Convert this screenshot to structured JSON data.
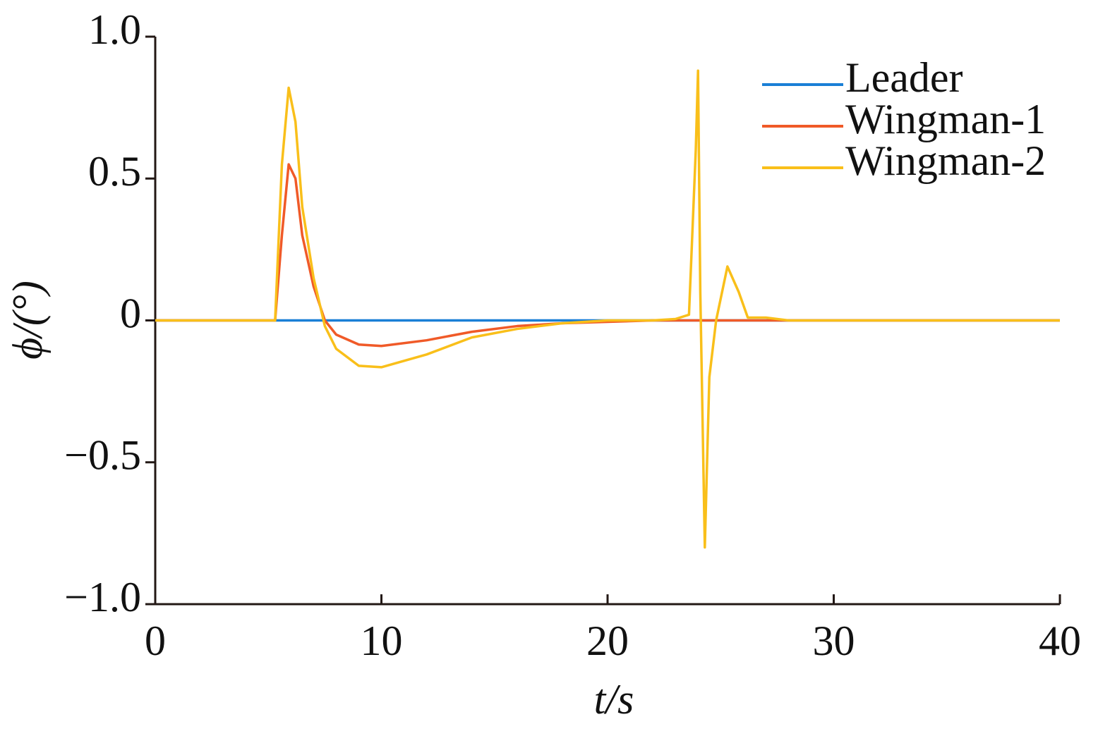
{
  "chart_data": {
    "type": "line",
    "x_label": "t/s",
    "y_label": "ϕ/(°)",
    "x": [
      0,
      5,
      5.3,
      5.6,
      5.9,
      6.2,
      6.5,
      7,
      7.5,
      8,
      9,
      10,
      12,
      14,
      16,
      18,
      20,
      22,
      23,
      23.6,
      23.9,
      24.0,
      24.1,
      24.3,
      24.5,
      24.8,
      25.3,
      25.8,
      26.2,
      27,
      28,
      30,
      35,
      40
    ],
    "series": [
      {
        "name": "Leader",
        "color": "#1a7fd6",
        "values": [
          0,
          0,
          0,
          0,
          0,
          0,
          0,
          0,
          0,
          0,
          0,
          0,
          0,
          0,
          0,
          0,
          0,
          0,
          0,
          0,
          0,
          0,
          0,
          0,
          0,
          0,
          0,
          0,
          0,
          0,
          0,
          0,
          0,
          0
        ]
      },
      {
        "name": "Wingman-1",
        "color": "#f05a28",
        "values": [
          0,
          0,
          0,
          0.3,
          0.55,
          0.5,
          0.3,
          0.12,
          0,
          -0.05,
          -0.085,
          -0.09,
          -0.07,
          -0.04,
          -0.02,
          -0.01,
          -0.005,
          0,
          0,
          0,
          0,
          0,
          0,
          0,
          0,
          0,
          0,
          0,
          0,
          0,
          0,
          0,
          0,
          0
        ]
      },
      {
        "name": "Wingman-2",
        "color": "#f9bf1a",
        "values": [
          0,
          0,
          0,
          0.55,
          0.82,
          0.7,
          0.4,
          0.15,
          -0.02,
          -0.1,
          -0.16,
          -0.165,
          -0.12,
          -0.06,
          -0.03,
          -0.01,
          0,
          0,
          0.005,
          0.02,
          0.6,
          0.88,
          0.1,
          -0.8,
          -0.2,
          0,
          0.19,
          0.1,
          0.01,
          0.01,
          0,
          0,
          0,
          0
        ]
      }
    ],
    "xlim": [
      0,
      40
    ],
    "xticks": [
      0,
      10,
      20,
      30,
      40
    ],
    "ylim": [
      -1,
      1
    ],
    "yticks": [
      {
        "value": -1,
        "label": "−1.0"
      },
      {
        "value": -0.5,
        "label": "−0.5"
      },
      0,
      {
        "value": 0.5,
        "label": "0.5"
      },
      {
        "value": 1,
        "label": "1.0"
      }
    ],
    "legend": "upper right",
    "grid": false
  }
}
